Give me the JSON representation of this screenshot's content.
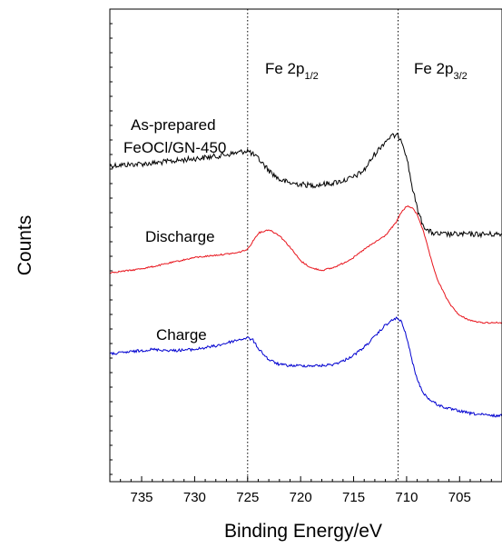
{
  "chart_data": {
    "type": "line",
    "title": "",
    "xlabel": "Binding Energy/eV",
    "ylabel": "Counts",
    "xlim": [
      738,
      701
    ],
    "x_reversed": true,
    "xticks": [
      735,
      730,
      725,
      720,
      715,
      710,
      705
    ],
    "xtick_labels": [
      "735",
      "730",
      "725",
      "720",
      "715",
      "710",
      "705"
    ],
    "y_ticks_shown": false,
    "grid": false,
    "reference_lines": [
      {
        "x": 725.0,
        "style": "dotted",
        "label_main": "Fe 2p",
        "label_sub": "1/2"
      },
      {
        "x": 710.8,
        "style": "dotted",
        "label_main": "Fe 2p",
        "label_sub": "3/2"
      }
    ],
    "series": [
      {
        "name": "As-prepared FeOCl/GN-450",
        "label_lines": [
          "As-prepared",
          "FeOCl/GN-450"
        ],
        "color": "#000000",
        "noise": 3.0,
        "x": [
          738,
          736,
          734,
          732,
          730,
          728,
          726,
          725,
          724,
          723,
          722,
          721,
          720,
          719,
          718,
          717,
          716,
          715,
          714,
          713,
          712,
          711.5,
          711,
          710.5,
          710,
          709.5,
          709,
          708.5,
          708,
          707.5,
          707,
          706,
          705,
          704,
          703,
          702,
          701
        ],
        "y": [
          0.92,
          0.93,
          0.94,
          0.96,
          0.98,
          1.0,
          1.03,
          1.05,
          0.98,
          0.88,
          0.8,
          0.77,
          0.76,
          0.75,
          0.76,
          0.77,
          0.79,
          0.82,
          0.88,
          1.02,
          1.13,
          1.17,
          1.18,
          1.15,
          1.0,
          0.75,
          0.55,
          0.42,
          0.36,
          0.34,
          0.33,
          0.33,
          0.33,
          0.33,
          0.33,
          0.33,
          0.33
        ]
      },
      {
        "name": "Discharge",
        "label_lines": [
          "Discharge"
        ],
        "color": "#e8141c",
        "noise": 0.8,
        "x": [
          738,
          736,
          734,
          732,
          730,
          728,
          726,
          725,
          724,
          723,
          722,
          721,
          720,
          719,
          718,
          717,
          716,
          715,
          714,
          713,
          712,
          711,
          710.5,
          710,
          709.5,
          709,
          708.5,
          708,
          707.5,
          707,
          706,
          705,
          704,
          703,
          702,
          701
        ],
        "y": [
          0.0,
          0.02,
          0.05,
          0.09,
          0.13,
          0.15,
          0.17,
          0.2,
          0.34,
          0.37,
          0.32,
          0.22,
          0.1,
          0.04,
          0.02,
          0.04,
          0.08,
          0.13,
          0.2,
          0.26,
          0.32,
          0.43,
          0.52,
          0.57,
          0.56,
          0.5,
          0.38,
          0.22,
          0.05,
          -0.08,
          -0.26,
          -0.37,
          -0.41,
          -0.43,
          -0.43,
          -0.43
        ]
      },
      {
        "name": "Charge",
        "label_lines": [
          "Charge"
        ],
        "color": "#0000d0",
        "noise": 1.5,
        "x": [
          738,
          736,
          734,
          732,
          730,
          728,
          726,
          725,
          724.5,
          724,
          723,
          722,
          721,
          720,
          719,
          718,
          717,
          716,
          715,
          714,
          713,
          712,
          711.5,
          711,
          710.5,
          710,
          709.5,
          709,
          708.5,
          708,
          707,
          706,
          705,
          704,
          703,
          702,
          701
        ],
        "y": [
          -0.7,
          -0.68,
          -0.66,
          -0.67,
          -0.66,
          -0.63,
          -0.58,
          -0.56,
          -0.58,
          -0.65,
          -0.75,
          -0.79,
          -0.8,
          -0.8,
          -0.8,
          -0.8,
          -0.79,
          -0.76,
          -0.71,
          -0.64,
          -0.55,
          -0.45,
          -0.42,
          -0.39,
          -0.42,
          -0.55,
          -0.75,
          -0.92,
          -1.02,
          -1.08,
          -1.14,
          -1.17,
          -1.19,
          -1.21,
          -1.22,
          -1.23,
          -1.23
        ]
      }
    ]
  }
}
